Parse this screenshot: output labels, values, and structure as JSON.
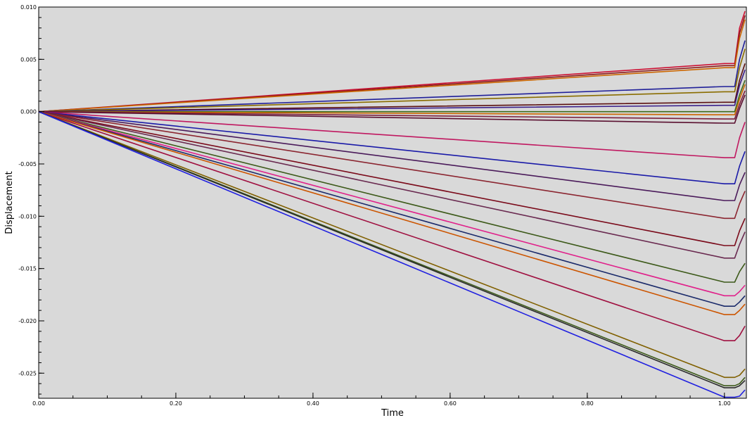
{
  "chart_data": {
    "type": "line",
    "xlabel": "Time",
    "ylabel": "Displacement",
    "xlim": [
      0.0,
      1.032
    ],
    "ylim": [
      -0.0274,
      0.01
    ],
    "xticks": [
      0.0,
      0.2,
      0.4,
      0.6,
      0.8,
      1.0
    ],
    "xtick_labels": [
      "0.00",
      "0.20",
      "0.40",
      "0.60",
      "0.80",
      "1.00"
    ],
    "yticks": [
      0.01,
      0.005,
      0.0,
      -0.005,
      -0.01,
      -0.015,
      -0.02,
      -0.025
    ],
    "ytick_labels": [
      "0.010",
      "0.005",
      "0.000",
      "-0.005",
      "-0.010",
      "-0.015",
      "-0.020",
      "-0.025"
    ],
    "background_color": "#d9d9d9",
    "grid": false,
    "legend": "none",
    "series": [
      {
        "color": "#cc1133",
        "values": [
          [
            0,
            0
          ],
          [
            1.0,
            0.0046
          ],
          [
            1.015,
            0.0046
          ],
          [
            1.022,
            0.008
          ],
          [
            1.03,
            0.0096
          ]
        ]
      },
      {
        "color": "#8b1a1a",
        "values": [
          [
            0,
            0
          ],
          [
            1.0,
            0.0044
          ],
          [
            1.015,
            0.0044
          ],
          [
            1.022,
            0.0075
          ],
          [
            1.03,
            0.0092
          ]
        ]
      },
      {
        "color": "#cc6600",
        "values": [
          [
            0,
            0
          ],
          [
            1.0,
            0.0042
          ],
          [
            1.015,
            0.0042
          ],
          [
            1.022,
            0.007
          ],
          [
            1.03,
            0.0088
          ]
        ]
      },
      {
        "color": "#1f1f99",
        "values": [
          [
            0,
            0
          ],
          [
            1.0,
            0.0024
          ],
          [
            1.015,
            0.0024
          ],
          [
            1.022,
            0.005
          ],
          [
            1.03,
            0.0068
          ]
        ]
      },
      {
        "color": "#8a6d00",
        "values": [
          [
            0,
            0
          ],
          [
            1.0,
            0.0019
          ],
          [
            1.015,
            0.0019
          ],
          [
            1.022,
            0.0042
          ],
          [
            1.03,
            0.006
          ]
        ]
      },
      {
        "color": "#5a1010",
        "values": [
          [
            0,
            0
          ],
          [
            1.0,
            0.0009
          ],
          [
            1.015,
            0.0009
          ],
          [
            1.022,
            0.003
          ],
          [
            1.03,
            0.0046
          ]
        ]
      },
      {
        "color": "#3a1f8a",
        "values": [
          [
            0,
            0
          ],
          [
            1.0,
            0.0006
          ],
          [
            1.015,
            0.0006
          ],
          [
            1.022,
            0.0025
          ],
          [
            1.03,
            0.004
          ]
        ]
      },
      {
        "color": "#3d6b1a",
        "values": [
          [
            0,
            0
          ],
          [
            1.0,
            0.0
          ],
          [
            1.015,
            0.0
          ],
          [
            1.022,
            0.0016
          ],
          [
            1.03,
            0.003
          ]
        ]
      },
      {
        "color": "#cc6600",
        "values": [
          [
            0,
            0
          ],
          [
            1.0,
            -0.0003
          ],
          [
            1.015,
            -0.0003
          ],
          [
            1.022,
            0.0012
          ],
          [
            1.03,
            0.0026
          ]
        ]
      },
      {
        "color": "#7a1f3d",
        "values": [
          [
            0,
            0
          ],
          [
            1.0,
            -0.0007
          ],
          [
            1.015,
            -0.0007
          ],
          [
            1.022,
            0.0007
          ],
          [
            1.03,
            0.002
          ]
        ]
      },
      {
        "color": "#5a1030",
        "values": [
          [
            0,
            0
          ],
          [
            1.0,
            -0.0011
          ],
          [
            1.015,
            -0.0011
          ],
          [
            1.022,
            0.0003
          ],
          [
            1.03,
            0.0016
          ]
        ]
      },
      {
        "color": "#c01860",
        "values": [
          [
            0,
            0
          ],
          [
            1.0,
            -0.0044
          ],
          [
            1.015,
            -0.0044
          ],
          [
            1.022,
            -0.0025
          ],
          [
            1.03,
            -0.001
          ]
        ]
      },
      {
        "color": "#1a1aa8",
        "values": [
          [
            0,
            0
          ],
          [
            1.0,
            -0.0069
          ],
          [
            1.015,
            -0.0069
          ],
          [
            1.022,
            -0.0052
          ],
          [
            1.03,
            -0.0038
          ]
        ]
      },
      {
        "color": "#4a1a5a",
        "values": [
          [
            0,
            0
          ],
          [
            1.0,
            -0.0085
          ],
          [
            1.015,
            -0.0085
          ],
          [
            1.022,
            -0.007
          ],
          [
            1.03,
            -0.0058
          ]
        ]
      },
      {
        "color": "#8b2530",
        "values": [
          [
            0,
            0
          ],
          [
            1.0,
            -0.0102
          ],
          [
            1.015,
            -0.0102
          ],
          [
            1.022,
            -0.0088
          ],
          [
            1.03,
            -0.0076
          ]
        ]
      },
      {
        "color": "#7a0a1a",
        "values": [
          [
            0,
            0
          ],
          [
            1.0,
            -0.0128
          ],
          [
            1.015,
            -0.0128
          ],
          [
            1.022,
            -0.0114
          ],
          [
            1.03,
            -0.0102
          ]
        ]
      },
      {
        "color": "#6a2a50",
        "values": [
          [
            0,
            0
          ],
          [
            1.0,
            -0.014
          ],
          [
            1.015,
            -0.014
          ],
          [
            1.022,
            -0.0127
          ],
          [
            1.03,
            -0.0115
          ]
        ]
      },
      {
        "color": "#3d5a1a",
        "values": [
          [
            0,
            0
          ],
          [
            1.0,
            -0.0163
          ],
          [
            1.015,
            -0.0163
          ],
          [
            1.022,
            -0.0153
          ],
          [
            1.03,
            -0.0145
          ]
        ]
      },
      {
        "color": "#e0208a",
        "values": [
          [
            0,
            0
          ],
          [
            1.0,
            -0.0176
          ],
          [
            1.015,
            -0.0176
          ],
          [
            1.022,
            -0.0172
          ],
          [
            1.03,
            -0.0166
          ]
        ]
      },
      {
        "color": "#1a2a6a",
        "values": [
          [
            0,
            0
          ],
          [
            1.0,
            -0.0186
          ],
          [
            1.015,
            -0.0186
          ],
          [
            1.022,
            -0.0182
          ],
          [
            1.03,
            -0.0176
          ]
        ]
      },
      {
        "color": "#cc5500",
        "values": [
          [
            0,
            0
          ],
          [
            1.0,
            -0.0194
          ],
          [
            1.015,
            -0.0194
          ],
          [
            1.022,
            -0.019
          ],
          [
            1.03,
            -0.0184
          ]
        ]
      },
      {
        "color": "#a01040",
        "values": [
          [
            0,
            0
          ],
          [
            1.0,
            -0.0219
          ],
          [
            1.015,
            -0.0219
          ],
          [
            1.022,
            -0.0214
          ],
          [
            1.03,
            -0.0205
          ]
        ]
      },
      {
        "color": "#806000",
        "values": [
          [
            0,
            0
          ],
          [
            1.0,
            -0.0254
          ],
          [
            1.015,
            -0.0254
          ],
          [
            1.022,
            -0.0252
          ],
          [
            1.03,
            -0.0246
          ]
        ]
      },
      {
        "color": "#3d5a1a",
        "values": [
          [
            0,
            0
          ],
          [
            1.0,
            -0.0262
          ],
          [
            1.015,
            -0.0262
          ],
          [
            1.022,
            -0.026
          ],
          [
            1.03,
            -0.0254
          ]
        ]
      },
      {
        "color": "#2a2a2a",
        "values": [
          [
            0,
            0
          ],
          [
            1.0,
            -0.0264
          ],
          [
            1.015,
            -0.0264
          ],
          [
            1.022,
            -0.0262
          ],
          [
            1.03,
            -0.0257
          ]
        ]
      },
      {
        "color": "#2020e0",
        "values": [
          [
            0,
            0
          ],
          [
            1.0,
            -0.0273
          ],
          [
            1.015,
            -0.0273
          ],
          [
            1.022,
            -0.0272
          ],
          [
            1.03,
            -0.0266
          ]
        ]
      }
    ]
  }
}
